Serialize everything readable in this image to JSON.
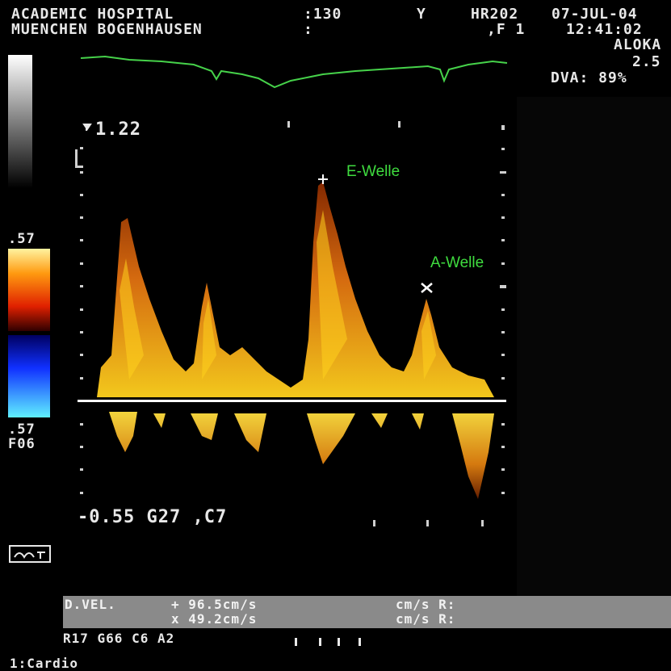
{
  "header": {
    "institution_line1": "ACADEMIC HOSPITAL",
    "institution_line2": "MUENCHEN BOGENHAUSEN",
    "field1": ":130",
    "field1b": ":",
    "field2": "Y",
    "hr": "HR202",
    "field3": ",F 1",
    "date": "07-JUL-04",
    "time": "12:41:02",
    "vendor": "ALOKA",
    "freq": "2.5",
    "dva": "DVA: 89%"
  },
  "scale": {
    "top_value": "1.22",
    "bottom_line": "-0.55 G27 ,C7",
    "colorbar_top": ".57",
    "colorbar_bottom": ".57",
    "colorbar_label": "F06"
  },
  "annotations": {
    "e_wave": "E-Welle",
    "a_wave": "A-Welle"
  },
  "measurements": {
    "label": "D.VEL.",
    "plus_value": "+ 96.5cm/s",
    "x_value": "x 49.2cm/s",
    "unit1": "cm/s R:",
    "unit2": "cm/s R:"
  },
  "footer": {
    "settings": "R17 G66 C6 A2",
    "preset": "1:Cardio"
  },
  "colors": {
    "ecg": "#46d24a",
    "doppler_hot": "#ffd21e",
    "doppler_warm": "#ff8a10",
    "doppler_dark": "#8a2a00",
    "annotation": "#3fdc3f",
    "baseline": "#ffffff"
  }
}
